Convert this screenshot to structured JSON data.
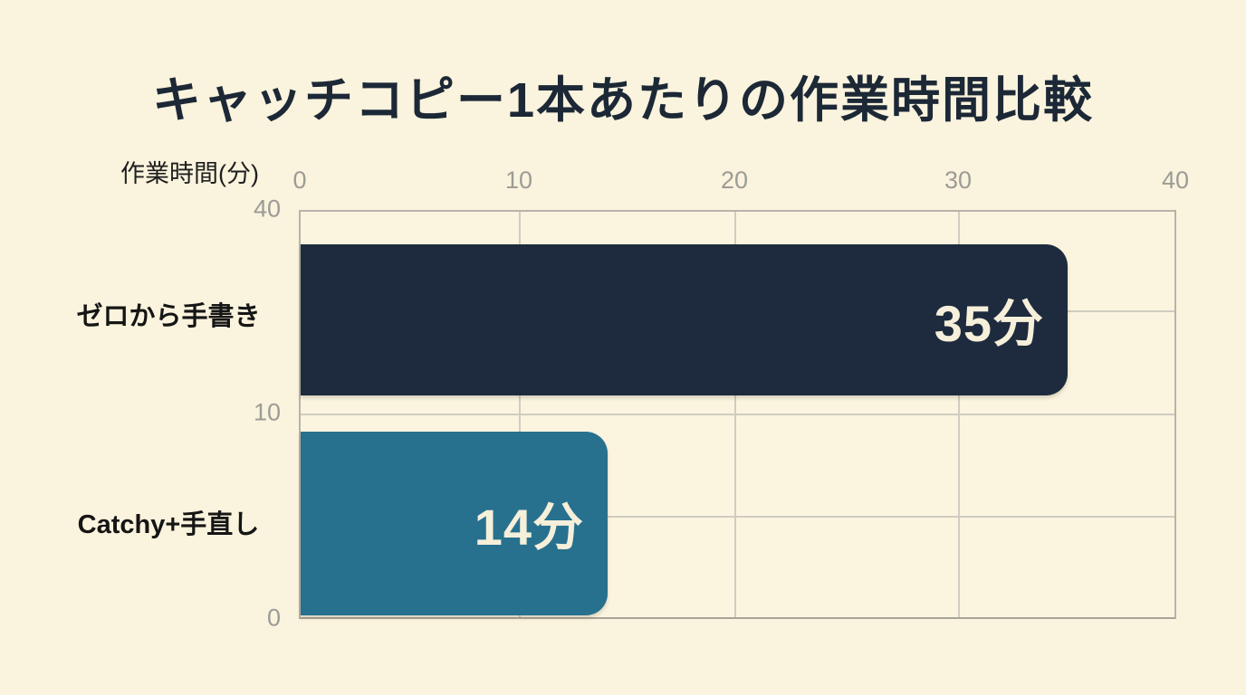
{
  "page": {
    "background_color": "#faf3dd"
  },
  "chart_data": {
    "type": "bar",
    "orientation": "horizontal",
    "title": "キャッチコピー1本あたりの作業時間比較",
    "unit_label": "作業時間(分)",
    "categories": [
      "ゼロから手書き",
      "Catchy+手直し"
    ],
    "values": [
      35,
      14
    ],
    "value_labels": [
      "35分",
      "14分"
    ],
    "xlim": [
      0,
      40
    ],
    "x_tick_labels": [
      "0",
      "10",
      "20",
      "30",
      "40"
    ],
    "side_tick_labels": [
      "40",
      "10",
      "0"
    ],
    "grid": true,
    "legend": false,
    "bar_colors": [
      "#1e2b3e",
      "#27718f"
    ],
    "value_label_color": "#f6efda",
    "title_color": "#1c2836",
    "axis_tick_color": "#9c9c96",
    "category_label_color": "#151515",
    "grid_color": "#cfccc1",
    "plot_border_color": "#b7b3a9",
    "background_color": "#faf3dd"
  }
}
